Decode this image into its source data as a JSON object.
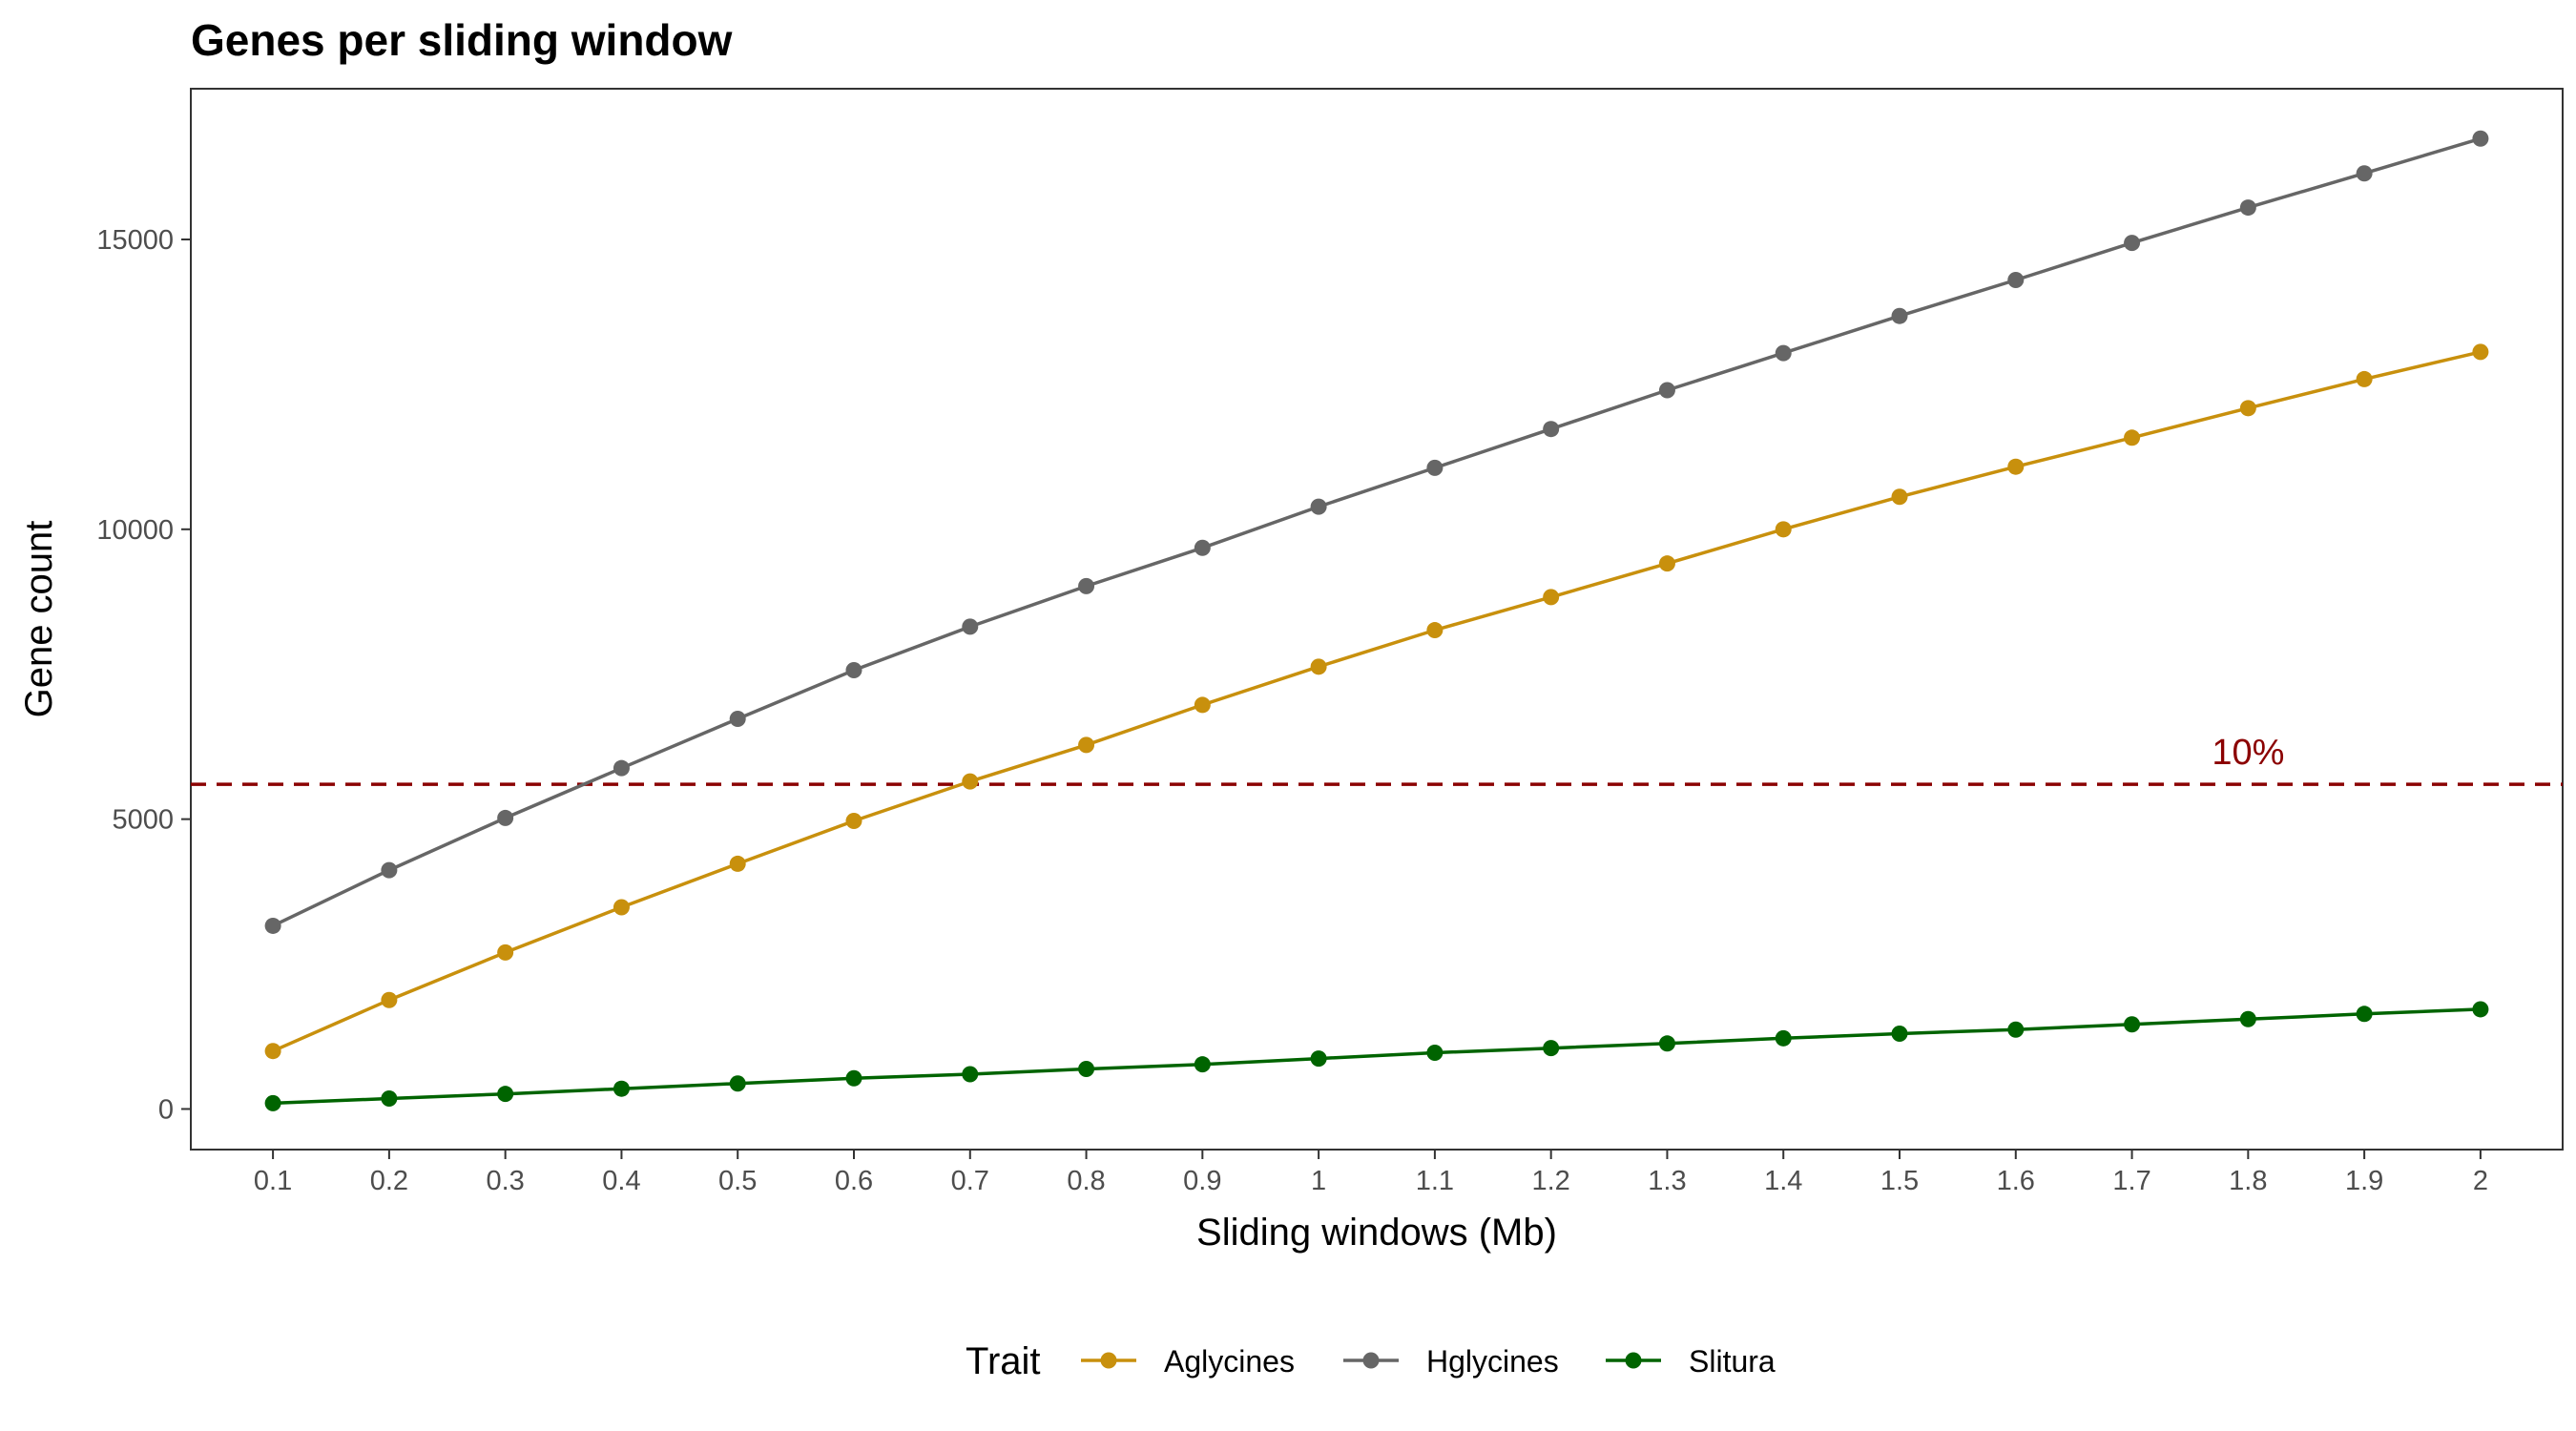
{
  "chart_data": {
    "type": "line",
    "title": "Genes per sliding window",
    "xlabel": "Sliding windows (Mb)",
    "ylabel": "Gene count",
    "x": [
      0.1,
      0.2,
      0.3,
      0.4,
      0.5,
      0.6,
      0.7,
      0.8,
      0.9,
      1,
      1.1,
      1.2,
      1.3,
      1.4,
      1.5,
      1.6,
      1.7,
      1.8,
      1.9,
      2
    ],
    "x_tick_labels": [
      "0.1",
      "0.2",
      "0.3",
      "0.4",
      "0.5",
      "0.6",
      "0.7",
      "0.8",
      "0.9",
      "1",
      "1.1",
      "1.2",
      "1.3",
      "1.4",
      "1.5",
      "1.6",
      "1.7",
      "1.8",
      "1.9",
      "2"
    ],
    "y_ticks": [
      0,
      5000,
      10000,
      15000
    ],
    "y_tick_labels": [
      "0",
      "5000",
      "10000",
      "15000"
    ],
    "ylim": [
      -700,
      17600
    ],
    "grid": false,
    "legend": {
      "title": "Trait",
      "position": "bottom"
    },
    "series": [
      {
        "name": "Aglycines",
        "color": "#C8900D",
        "values": [
          1000,
          1880,
          2700,
          3480,
          4230,
          4970,
          5650,
          6280,
          6970,
          7630,
          8260,
          8830,
          9410,
          10000,
          10560,
          11080,
          11580,
          12090,
          12590,
          13060
        ]
      },
      {
        "name": "Hglycines",
        "color": "#666666",
        "values": [
          3160,
          4120,
          5020,
          5880,
          6730,
          7570,
          8320,
          9020,
          9680,
          10390,
          11060,
          11730,
          12400,
          13040,
          13680,
          14300,
          14940,
          15550,
          16140,
          16740
        ]
      },
      {
        "name": "Slitura",
        "color": "#006400",
        "values": [
          100,
          180,
          260,
          350,
          440,
          530,
          600,
          690,
          770,
          870,
          970,
          1050,
          1130,
          1220,
          1300,
          1370,
          1460,
          1550,
          1640,
          1720
        ]
      }
    ],
    "reference_line": {
      "y": 5600,
      "label": "10%",
      "label_x": 1.8,
      "style": "dashed",
      "color": "#8B0000"
    }
  }
}
